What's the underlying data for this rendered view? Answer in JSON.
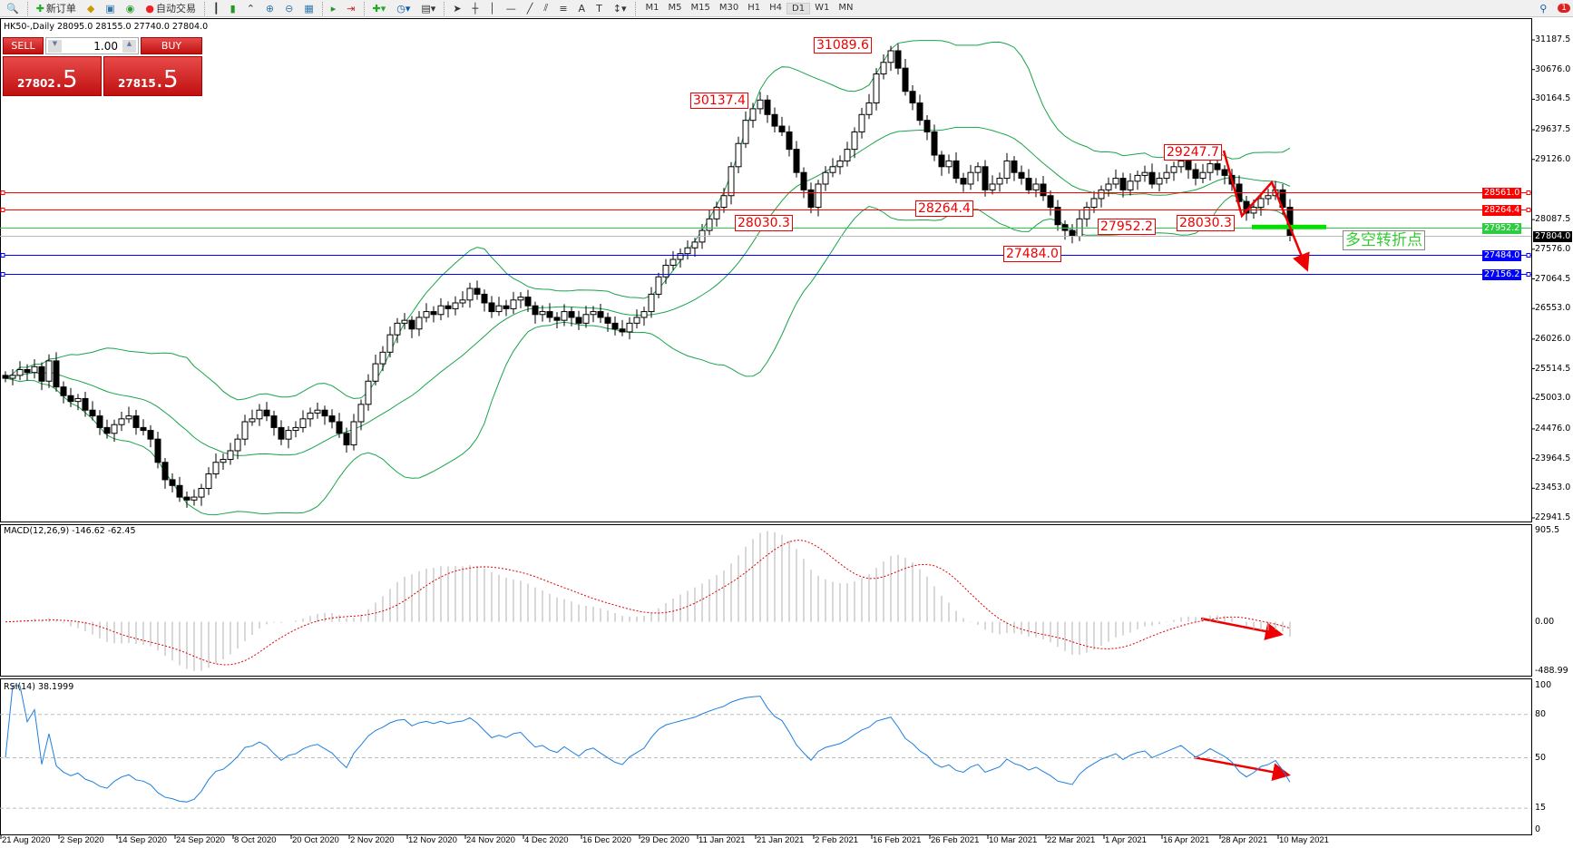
{
  "toolbar": {
    "new_order": "新订单",
    "auto_trading": "自动交易",
    "timeframes": [
      "M1",
      "M5",
      "M15",
      "M30",
      "H1",
      "H4",
      "D1",
      "W1",
      "MN"
    ],
    "active_timeframe": "D1",
    "notification_count": "1"
  },
  "chart_title": "HK50-,Daily  28095.0 28155.0 27740.0 27804.0",
  "trade_panel": {
    "sell_label": "SELL",
    "buy_label": "BUY",
    "lots": "1.00",
    "sell_price_main": "27802",
    "sell_price_big": ".5",
    "buy_price_main": "27815",
    "buy_price_big": ".5"
  },
  "colors": {
    "up_candle": "#ffffff",
    "down_candle": "#000000",
    "bands": "#1aa34a",
    "macd_hist": "#b0b0b0",
    "macd_signal": "#e00000",
    "rsi": "#1e7fe0",
    "resistance": "#ff0000",
    "support": "#0000ff",
    "pivot": "#2ecc40",
    "bid": "#000000"
  },
  "annotations": [
    {
      "text": "31089.6"
    },
    {
      "text": "30137.4"
    },
    {
      "text": "28030.3"
    },
    {
      "text": "28264.4"
    },
    {
      "text": "27952.2"
    },
    {
      "text": "28030.3"
    },
    {
      "text": "27484.0"
    },
    {
      "text": "29247.7"
    }
  ],
  "turning_point_label": "多空转折点",
  "chart_data": {
    "type": "candlestick",
    "symbol": "HK50-",
    "timeframe": "Daily",
    "ohlc_last": {
      "open": 28095.0,
      "high": 28155.0,
      "low": 27740.0,
      "close": 27804.0
    },
    "closes": [
      25350,
      25400,
      25500,
      25450,
      25550,
      25300,
      25650,
      25200,
      25050,
      24950,
      25000,
      24800,
      24700,
      24500,
      24400,
      24550,
      24650,
      24700,
      24500,
      24450,
      24300,
      23900,
      23600,
      23500,
      23300,
      23250,
      23300,
      23450,
      23700,
      23900,
      23950,
      24100,
      24300,
      24600,
      24650,
      24800,
      24700,
      24500,
      24300,
      24450,
      24500,
      24650,
      24750,
      24800,
      24700,
      24600,
      24400,
      24200,
      24600,
      24900,
      25300,
      25600,
      25800,
      26100,
      26300,
      26350,
      26200,
      26400,
      26500,
      26450,
      26600,
      26550,
      26650,
      26700,
      26900,
      26800,
      26650,
      26500,
      26600,
      26550,
      26700,
      26750,
      26600,
      26450,
      26500,
      26400,
      26350,
      26500,
      26400,
      26300,
      26450,
      26500,
      26400,
      26300,
      26200,
      26150,
      26300,
      26400,
      26500,
      26800,
      27100,
      27300,
      27400,
      27500,
      27600,
      27700,
      27900,
      28100,
      28300,
      28500,
      29000,
      29400,
      29800,
      30000,
      30150,
      29900,
      29700,
      29600,
      29300,
      28900,
      28600,
      28300,
      28700,
      28900,
      29000,
      29100,
      29300,
      29600,
      29900,
      30100,
      30600,
      30800,
      31000,
      30700,
      30300,
      30100,
      29800,
      29600,
      29200,
      29000,
      29100,
      28800,
      28700,
      28900,
      29000,
      28600,
      28700,
      28800,
      29100,
      28900,
      28800,
      28600,
      28700,
      28500,
      28300,
      28000,
      27900,
      27800,
      28100,
      28300,
      28450,
      28600,
      28700,
      28800,
      28600,
      28750,
      28850,
      28900,
      28700,
      28800,
      28900,
      29000,
      29100,
      28950,
      28800,
      28900,
      29050,
      28950,
      28850,
      28700,
      28400,
      28200,
      28300,
      28450,
      28500,
      28600,
      28300,
      27804
    ],
    "price_axis": {
      "ylim": [
        22941.5,
        31187.5
      ],
      "ticks": [
        "31187.5",
        "30676.0",
        "30164.5",
        "29637.5",
        "29126.0",
        "28087.5",
        "27576.0",
        "27064.5",
        "26553.0",
        "26026.0",
        "25514.5",
        "25003.0",
        "24476.0",
        "23964.5",
        "23453.0",
        "22941.5"
      ]
    },
    "date_ticks": [
      "21 Aug 2020",
      "2 Sep 2020",
      "14 Sep 2020",
      "24 Sep 2020",
      "8 Oct 2020",
      "20 Oct 2020",
      "2 Nov 2020",
      "12 Nov 2020",
      "24 Nov 2020",
      "4 Dec 2020",
      "16 Dec 2020",
      "29 Dec 2020",
      "11 Jan 2021",
      "21 Jan 2021",
      "2 Feb 2021",
      "16 Feb 2021",
      "26 Feb 2021",
      "10 Mar 2021",
      "22 Mar 2021",
      "1 Apr 2021",
      "16 Apr 2021",
      "28 Apr 2021",
      "10 May 2021"
    ],
    "horizontal_lines": [
      {
        "price": 28561.0,
        "label": "28561.0",
        "color": "#ff0000"
      },
      {
        "price": 28264.4,
        "label": "28264.4",
        "color": "#ff0000"
      },
      {
        "price": 27952.2,
        "label": "27952.2",
        "color": "#2ecc40"
      },
      {
        "price": 27804.0,
        "label": "27804.0",
        "color": "#000000"
      },
      {
        "price": 27484.0,
        "label": "27484.0",
        "color": "#0000ff"
      },
      {
        "price": 27156.2,
        "label": "27156.2",
        "color": "#0000ff"
      }
    ],
    "indicators": {
      "bollinger": {
        "period": 20,
        "deviation": 2
      },
      "macd": {
        "title": "MACD(12,26,9) -146.62 -62.45",
        "ylim": [
          -488.99,
          905.5
        ],
        "ticks": [
          "905.5",
          "0.00",
          "-488.99"
        ]
      },
      "rsi": {
        "title": "RSI(14) 38.1999",
        "ylim": [
          0,
          100
        ],
        "levels": [
          80,
          50,
          15
        ],
        "ticks": [
          "100",
          "80",
          "50",
          "15",
          "0"
        ]
      }
    }
  }
}
